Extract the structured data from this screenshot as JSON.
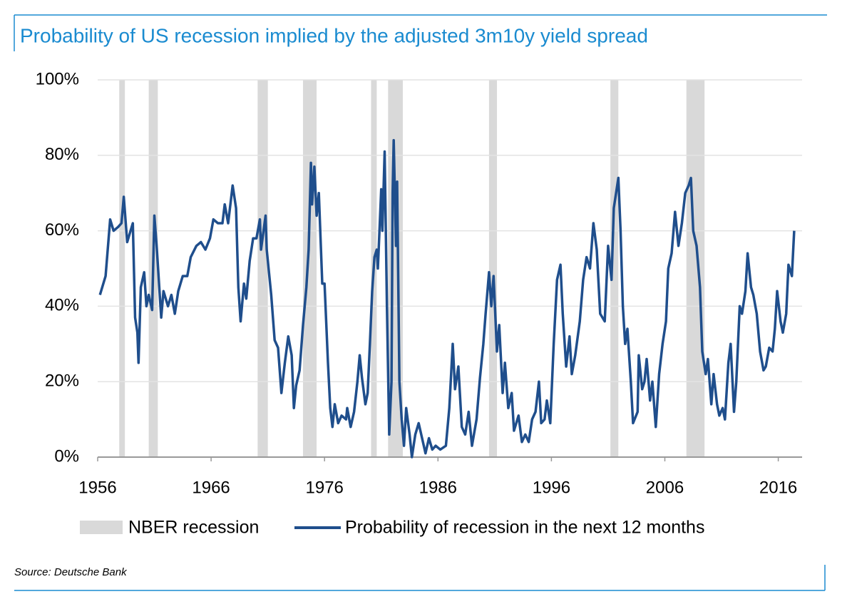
{
  "chart_data": {
    "type": "line",
    "title": "Probability of US recession implied by the adjusted 3m10y yield spread",
    "source": "Source: Deutsche Bank",
    "xlim": [
      1956,
      2018.1
    ],
    "ylim": [
      0,
      100
    ],
    "xticks": [
      1956,
      1966,
      1976,
      1986,
      1996,
      2006,
      2016
    ],
    "yticks": [
      {
        "value": 0,
        "label": "0%"
      },
      {
        "value": 20,
        "label": "20%"
      },
      {
        "value": 40,
        "label": "40%"
      },
      {
        "value": 60,
        "label": "60%"
      },
      {
        "value": 80,
        "label": "80%"
      },
      {
        "value": 100,
        "label": "100%"
      }
    ],
    "grid": true,
    "recessions": {
      "name": "NBER recession",
      "color": "#d9d9d9",
      "bands": [
        [
          1957.9,
          1958.4
        ],
        [
          1960.5,
          1961.3
        ],
        [
          1970.1,
          1971.0
        ],
        [
          1974.1,
          1975.3
        ],
        [
          1980.1,
          1980.6
        ],
        [
          1981.6,
          1982.9
        ],
        [
          1990.5,
          1991.2
        ],
        [
          2001.2,
          2001.9
        ],
        [
          2007.9,
          2009.5
        ]
      ]
    },
    "x": [
      1956.2,
      1956.7,
      1957.1,
      1957.4,
      1957.8,
      1958.1,
      1958.3,
      1958.6,
      1959.1,
      1959.3,
      1959.5,
      1959.6,
      1959.8,
      1960.1,
      1960.3,
      1960.5,
      1960.8,
      1961.0,
      1961.2,
      1961.6,
      1961.8,
      1962.2,
      1962.5,
      1962.8,
      1963.1,
      1963.5,
      1963.9,
      1964.2,
      1964.7,
      1965.1,
      1965.5,
      1965.9,
      1966.2,
      1966.6,
      1967.0,
      1967.2,
      1967.5,
      1967.9,
      1968.2,
      1968.4,
      1968.6,
      1968.9,
      1969.1,
      1969.4,
      1969.7,
      1970.0,
      1970.3,
      1970.4,
      1970.8,
      1970.9,
      1971.3,
      1971.6,
      1971.9,
      1972.2,
      1972.5,
      1972.8,
      1973.1,
      1973.3,
      1973.5,
      1973.8,
      1974.1,
      1974.4,
      1974.6,
      1974.8,
      1974.9,
      1975.1,
      1975.3,
      1975.5,
      1975.8,
      1976.0,
      1976.3,
      1976.5,
      1976.7,
      1976.9,
      1977.2,
      1977.5,
      1977.9,
      1978.0,
      1978.3,
      1978.6,
      1978.9,
      1979.1,
      1979.3,
      1979.6,
      1979.8,
      1980.0,
      1980.2,
      1980.4,
      1980.6,
      1980.7,
      1981.0,
      1981.1,
      1981.3,
      1981.5,
      1981.7,
      1981.9,
      1982.0,
      1982.1,
      1982.3,
      1982.4,
      1982.6,
      1982.8,
      1983.0,
      1983.2,
      1983.5,
      1983.7,
      1984.0,
      1984.3,
      1984.6,
      1984.9,
      1985.2,
      1985.5,
      1985.8,
      1986.2,
      1986.7,
      1987.0,
      1987.3,
      1987.5,
      1987.8,
      1988.1,
      1988.4,
      1988.7,
      1989.0,
      1989.4,
      1989.7,
      1990.0,
      1990.2,
      1990.5,
      1990.7,
      1990.9,
      1991.2,
      1991.4,
      1991.7,
      1991.9,
      1992.2,
      1992.5,
      1992.7,
      1993.1,
      1993.4,
      1993.7,
      1994.0,
      1994.3,
      1994.6,
      1994.9,
      1995.1,
      1995.4,
      1995.6,
      1995.9,
      1996.2,
      1996.5,
      1996.8,
      1997.0,
      1997.3,
      1997.6,
      1997.8,
      1998.1,
      1998.5,
      1998.8,
      1999.1,
      1999.4,
      1999.7,
      2000.0,
      2000.3,
      2000.7,
      2001.0,
      2001.3,
      2001.5,
      2001.9,
      2002.1,
      2002.3,
      2002.5,
      2002.7,
      2003.0,
      2003.2,
      2003.6,
      2003.7,
      2004.0,
      2004.2,
      2004.4,
      2004.7,
      2004.9,
      2005.2,
      2005.5,
      2005.8,
      2006.1,
      2006.3,
      2006.6,
      2006.9,
      2007.2,
      2007.5,
      2007.8,
      2008.1,
      2008.3,
      2008.5,
      2008.8,
      2009.1,
      2009.3,
      2009.6,
      2009.8,
      2010.1,
      2010.3,
      2010.6,
      2010.8,
      2011.1,
      2011.3,
      2011.6,
      2011.8,
      2012.1,
      2012.3,
      2012.6,
      2012.8,
      2013.1,
      2013.3,
      2013.6,
      2013.8,
      2014.1,
      2014.4,
      2014.7,
      2014.9,
      2015.2,
      2015.5,
      2015.7,
      2015.9,
      2016.2,
      2016.4,
      2016.7,
      2016.9,
      2017.2,
      2017.4
    ],
    "series": [
      {
        "name": "Probability of recession in the next 12 months",
        "color": "#1f4e8c",
        "values": [
          43,
          48,
          63,
          60,
          61,
          62,
          69,
          57,
          62,
          37,
          33,
          25,
          45,
          49,
          40,
          43,
          39,
          64,
          56,
          37,
          44,
          40,
          43,
          38,
          44,
          48,
          48,
          53,
          56,
          57,
          55,
          58,
          63,
          62,
          62,
          67,
          62,
          72,
          66,
          45,
          36,
          46,
          42,
          52,
          58,
          58,
          63,
          55,
          64,
          55,
          43,
          31,
          29,
          17,
          25,
          32,
          27,
          13,
          19,
          23,
          35,
          45,
          55,
          78,
          67,
          77,
          64,
          70,
          46,
          46,
          25,
          13,
          8,
          14,
          9,
          11,
          10,
          13,
          8,
          12,
          20,
          27,
          21,
          14,
          17,
          30,
          44,
          53,
          55,
          50,
          71,
          60,
          81,
          40,
          6,
          20,
          70,
          84,
          56,
          73,
          20,
          10,
          3,
          13,
          6,
          0,
          6,
          9,
          5,
          1,
          5,
          2,
          3,
          2,
          3,
          13,
          30,
          18,
          24,
          8,
          6,
          12,
          3,
          10,
          21,
          30,
          38,
          49,
          40,
          48,
          28,
          35,
          17,
          25,
          13,
          17,
          7,
          11,
          4,
          6,
          4,
          10,
          12,
          20,
          9,
          10,
          15,
          9,
          30,
          47,
          51,
          38,
          24,
          32,
          22,
          27,
          36,
          47,
          53,
          50,
          62,
          55,
          38,
          36,
          56,
          47,
          66,
          74,
          60,
          40,
          30,
          34,
          20,
          9,
          12,
          27,
          18,
          20,
          26,
          15,
          20,
          8,
          22,
          30,
          36,
          50,
          54,
          65,
          56,
          62,
          70,
          72,
          74,
          60,
          56,
          45,
          28,
          22,
          26,
          14,
          22,
          14,
          11,
          13,
          10,
          25,
          30,
          12,
          20,
          40,
          38,
          44,
          54,
          45,
          43,
          38,
          28,
          23,
          24,
          29,
          28,
          34,
          44,
          36,
          33,
          38,
          51,
          48,
          60
        ]
      }
    ]
  }
}
